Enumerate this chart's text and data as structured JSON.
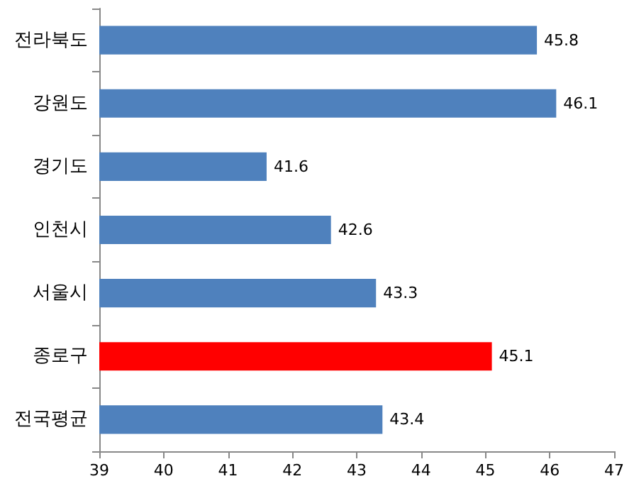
{
  "chart_data": {
    "type": "bar",
    "orientation": "horizontal",
    "categories": [
      "전라북도",
      "강원도",
      "경기도",
      "인천시",
      "서울시",
      "종로구",
      "전국평균"
    ],
    "values": [
      45.8,
      46.1,
      41.6,
      42.6,
      43.3,
      45.1,
      43.4
    ],
    "colors": [
      "#4f81bd",
      "#4f81bd",
      "#4f81bd",
      "#4f81bd",
      "#4f81bd",
      "#ff0000",
      "#4f81bd"
    ],
    "xlim": [
      39,
      47
    ],
    "xticks": [
      39,
      40,
      41,
      42,
      43,
      44,
      45,
      46,
      47
    ],
    "data_labels": true
  }
}
